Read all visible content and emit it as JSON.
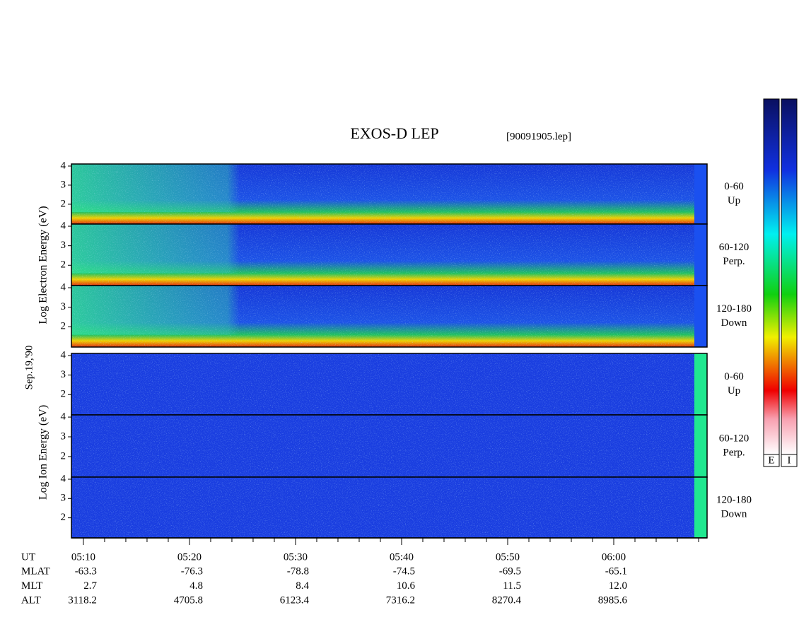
{
  "chart_data": {
    "type": "spectrogram",
    "title": "EXOS-D LEP",
    "subtitle": "[90091905.lep]",
    "date_label": "Sep.19,'90",
    "ylabels": [
      "Log Electron Energy (eV)",
      "Log Ion Energy (eV)"
    ],
    "ylim": [
      0.96,
      4.11
    ],
    "yticks": [
      2,
      3,
      4
    ],
    "panels": [
      {
        "label": [
          "0-60",
          "Up"
        ]
      },
      {
        "label": [
          "60-120",
          "Perp."
        ]
      },
      {
        "label": [
          "120-180",
          "Down"
        ]
      },
      {
        "label": [
          "0-60",
          "Up"
        ]
      },
      {
        "label": [
          "60-120",
          "Perp."
        ]
      },
      {
        "label": [
          "120-180",
          "Down"
        ]
      }
    ],
    "xlim": [
      308.87,
      368.8
    ],
    "xticks": [
      {
        "value": 310,
        "label": "05:10"
      },
      {
        "value": 320,
        "label": "05:20"
      },
      {
        "value": 330,
        "label": "05:30"
      },
      {
        "value": 340,
        "label": "05:40"
      },
      {
        "value": 350,
        "label": "05:50"
      },
      {
        "value": 360,
        "label": "06:00"
      }
    ],
    "xminorticks": [
      312,
      314,
      316,
      318,
      322,
      324,
      326,
      328,
      332,
      334,
      336,
      338,
      342,
      344,
      346,
      348,
      352,
      354,
      356,
      358,
      362,
      364,
      366,
      368
    ],
    "ephemeris": {
      "time_label": "UT",
      "rows": [
        {
          "name": "MLAT",
          "values": [
            "-63.3",
            "-76.3",
            "-78.8",
            "-74.5",
            "-69.5",
            "-65.1"
          ]
        },
        {
          "name": "MLT",
          "values": [
            "2.7",
            "4.8",
            "8.4",
            "10.6",
            "11.5",
            "12.0"
          ]
        },
        {
          "name": "ALT",
          "values": [
            "3118.2",
            "4705.8",
            "6123.4",
            "7316.2",
            "8270.4",
            "8985.6"
          ]
        }
      ]
    },
    "colorbar_labels": [
      "E",
      "I"
    ]
  }
}
